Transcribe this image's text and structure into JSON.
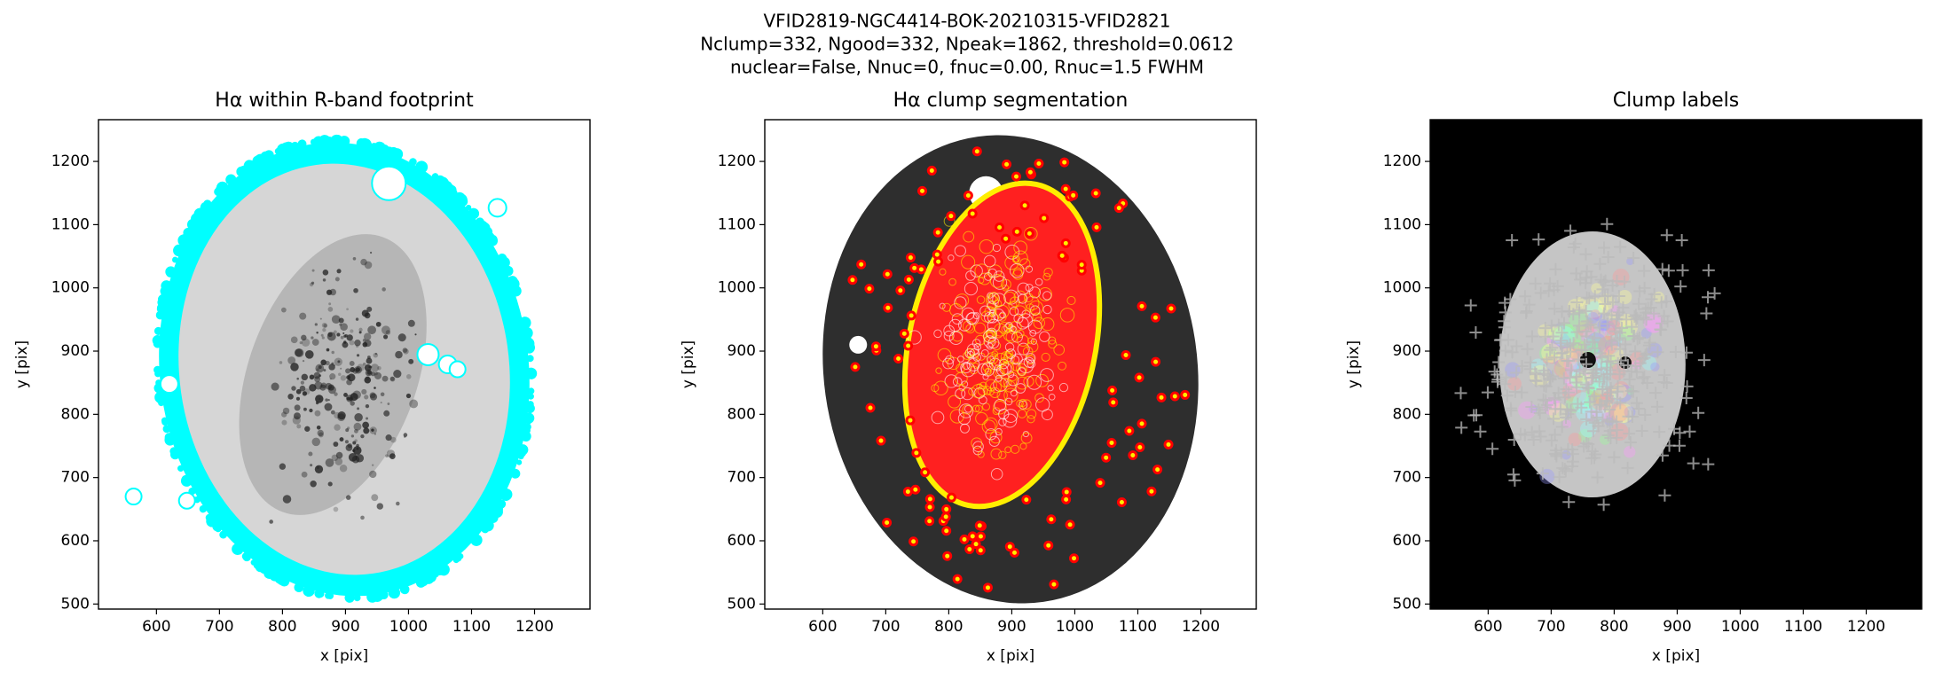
{
  "suptitle": [
    "VFID2819-NGC4414-BOK-20210315-VFID2821",
    "Nclump=332, Ngood=332, Npeak=1862, threshold=0.0612",
    "nuclear=False, Nnuc=0, fnuc=0.00, Rnuc=1.5 FWHM"
  ],
  "chart_data": [
    {
      "type": "footprint",
      "title": "Hα within R-band footprint",
      "xlabel": "x [pix]",
      "ylabel": "y [pix]",
      "xlim": [
        508,
        1288
      ],
      "ylim": [
        492,
        1266
      ],
      "xticks": [
        600,
        700,
        800,
        900,
        1000,
        1100,
        1200
      ],
      "yticks": [
        500,
        600,
        700,
        800,
        900,
        1000,
        1100,
        1200
      ]
    },
    {
      "type": "segmentation",
      "title": "Hα clump segmentation",
      "xlabel": "x [pix]",
      "ylabel": "y [pix]",
      "xlim": [
        508,
        1288
      ],
      "ylim": [
        492,
        1266
      ],
      "xticks": [
        600,
        700,
        800,
        900,
        1000,
        1100,
        1200
      ],
      "yticks": [
        500,
        600,
        700,
        800,
        900,
        1000,
        1100,
        1200
      ]
    },
    {
      "type": "labels",
      "title": "Clump labels",
      "xlabel": "x [pix]",
      "ylabel": "y [pix]",
      "xlim": [
        508,
        1288
      ],
      "ylim": [
        492,
        1266
      ],
      "xticks": [
        600,
        700,
        800,
        900,
        1000,
        1100,
        1200
      ],
      "yticks": [
        500,
        600,
        700,
        800,
        900,
        1000,
        1100,
        1200
      ]
    }
  ]
}
